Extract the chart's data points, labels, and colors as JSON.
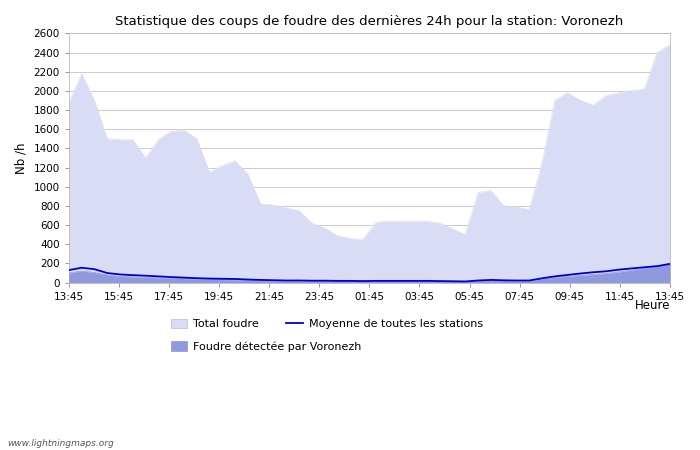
{
  "title": "Statistique des coups de foudre des dernières 24h pour la station: Voronezh",
  "xlabel": "Heure",
  "ylabel": "Nb /h",
  "ylim": [
    0,
    2600
  ],
  "yticks": [
    0,
    200,
    400,
    600,
    800,
    1000,
    1200,
    1400,
    1600,
    1800,
    2000,
    2200,
    2400,
    2600
  ],
  "xtick_labels": [
    "13:45",
    "15:45",
    "17:45",
    "19:45",
    "21:45",
    "23:45",
    "01:45",
    "03:45",
    "05:45",
    "07:45",
    "09:45",
    "11:45",
    "13:45"
  ],
  "background_color": "#ffffff",
  "plot_bg_color": "#ffffff",
  "grid_color": "#cccccc",
  "total_foudre_color": "#d8ddf5",
  "voronezh_color": "#9099dd",
  "moyenne_color": "#0000cc",
  "watermark": "www.lightningmaps.org",
  "total_foudre": [
    1870,
    2180,
    1900,
    1500,
    1490,
    1490,
    1300,
    1490,
    1580,
    1590,
    1500,
    1150,
    1220,
    1270,
    1130,
    820,
    810,
    780,
    750,
    620,
    570,
    490,
    460,
    450,
    630,
    640,
    640,
    640,
    640,
    620,
    560,
    500,
    940,
    960,
    800,
    790,
    760,
    1250,
    1900,
    1980,
    1900,
    1850,
    1950,
    1980,
    2000,
    2020,
    2400,
    2480
  ],
  "voronezh_foudre": [
    100,
    120,
    105,
    80,
    65,
    60,
    55,
    50,
    45,
    42,
    38,
    35,
    32,
    30,
    25,
    22,
    20,
    18,
    18,
    18,
    18,
    18,
    20,
    15,
    20,
    20,
    20,
    20,
    20,
    15,
    12,
    10,
    20,
    25,
    22,
    20,
    20,
    40,
    55,
    65,
    75,
    85,
    95,
    110,
    130,
    150,
    170,
    200
  ],
  "moyenne": [
    130,
    155,
    140,
    100,
    85,
    78,
    72,
    65,
    58,
    52,
    46,
    42,
    40,
    38,
    32,
    28,
    25,
    22,
    22,
    20,
    20,
    18,
    18,
    16,
    18,
    18,
    18,
    18,
    18,
    16,
    14,
    12,
    22,
    28,
    24,
    22,
    22,
    45,
    65,
    80,
    95,
    108,
    118,
    135,
    148,
    160,
    172,
    195
  ]
}
